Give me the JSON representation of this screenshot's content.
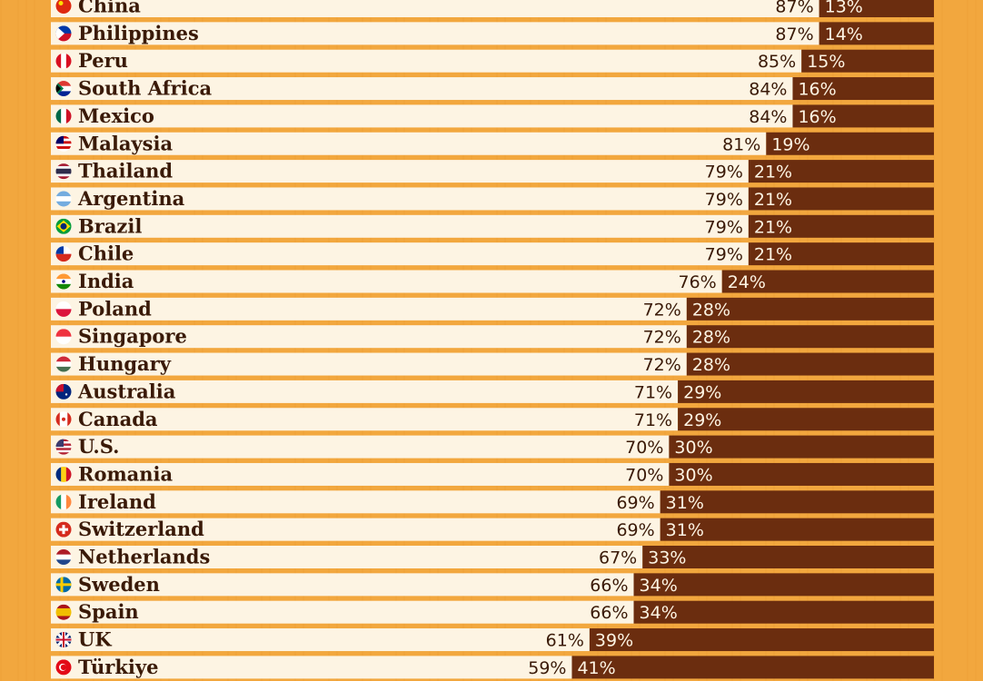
{
  "chart_data": {
    "type": "bar",
    "stacked": true,
    "orientation": "horizontal",
    "xlim": [
      0,
      100
    ],
    "categories": [
      "China",
      "Philippines",
      "Peru",
      "South Africa",
      "Mexico",
      "Malaysia",
      "Thailand",
      "Argentina",
      "Brazil",
      "Chile",
      "India",
      "Poland",
      "Singapore",
      "Hungary",
      "Australia",
      "Canada",
      "U.S.",
      "Romania",
      "Ireland",
      "Switzerland",
      "Netherlands",
      "Sweden",
      "Spain",
      "UK",
      "Türkiye"
    ],
    "series": [
      {
        "values": [
          87,
          87,
          85,
          84,
          84,
          81,
          79,
          79,
          79,
          79,
          76,
          72,
          72,
          72,
          71,
          71,
          70,
          70,
          69,
          69,
          67,
          66,
          66,
          61,
          59
        ],
        "color": "#fdf4e3"
      },
      {
        "values": [
          13,
          14,
          15,
          16,
          16,
          19,
          21,
          21,
          21,
          21,
          24,
          28,
          28,
          28,
          29,
          29,
          30,
          30,
          31,
          31,
          33,
          34,
          34,
          39,
          41
        ],
        "color": "#6b2d0f"
      }
    ],
    "flag_icons": [
      "flag-china-icon",
      "flag-philippines-icon",
      "flag-peru-icon",
      "flag-south-africa-icon",
      "flag-mexico-icon",
      "flag-malaysia-icon",
      "flag-thailand-icon",
      "flag-argentina-icon",
      "flag-brazil-icon",
      "flag-chile-icon",
      "flag-india-icon",
      "flag-poland-icon",
      "flag-singapore-icon",
      "flag-hungary-icon",
      "flag-australia-icon",
      "flag-canada-icon",
      "flag-us-icon",
      "flag-romania-icon",
      "flag-ireland-icon",
      "flag-switzerland-icon",
      "flag-netherlands-icon",
      "flag-sweden-icon",
      "flag-spain-icon",
      "flag-uk-icon",
      "flag-turkiye-icon"
    ]
  },
  "colors": {
    "background": "#f2a73e",
    "left_bar": "#fdf4e3",
    "right_bar": "#6b2d0f",
    "label_dark": "#3a1a08",
    "label_light": "#fdf4e3"
  }
}
